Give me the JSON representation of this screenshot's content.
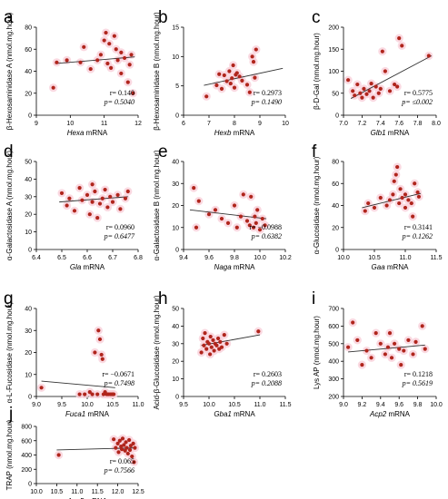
{
  "colors": {
    "point": "#b0251c",
    "halo": "#f9d2dc",
    "trend": "#333333",
    "axis": "#000000"
  },
  "chart_data": [
    {
      "letter": "a",
      "type": "scatter",
      "xlabel_gene": "Hexa",
      "xlabel_suffix": " mRNA",
      "ylabel": "β-Hexosaminidase A (nmol.mg.hour)",
      "xlim": [
        9,
        12
      ],
      "ylim": [
        0,
        80
      ],
      "xticks": [
        9,
        10,
        11,
        12
      ],
      "yticks": [
        0,
        20,
        40,
        60,
        80
      ],
      "xtick_labels": [
        "9",
        "10",
        "11",
        "12"
      ],
      "ytick_labels": [
        "0",
        "20",
        "40",
        "60",
        "80"
      ],
      "r_text": "r= 0.140",
      "p_text": "p= 0.5040",
      "p_symbol": "p",
      "trend": [
        [
          9.55,
          47
        ],
        [
          11.9,
          53
        ]
      ],
      "points": [
        [
          9.5,
          25
        ],
        [
          9.6,
          48
        ],
        [
          9.9,
          50
        ],
        [
          10.3,
          48
        ],
        [
          10.4,
          62
        ],
        [
          10.6,
          42
        ],
        [
          10.8,
          50
        ],
        [
          10.9,
          55
        ],
        [
          11.0,
          68
        ],
        [
          11.05,
          75
        ],
        [
          11.1,
          47
        ],
        [
          11.15,
          65
        ],
        [
          11.2,
          43
        ],
        [
          11.3,
          72
        ],
        [
          11.35,
          60
        ],
        [
          11.4,
          50
        ],
        [
          11.5,
          57
        ],
        [
          11.5,
          38
        ],
        [
          11.6,
          52
        ],
        [
          11.7,
          30
        ],
        [
          11.75,
          46
        ],
        [
          11.8,
          55
        ],
        [
          11.85,
          20
        ]
      ]
    },
    {
      "letter": "b",
      "type": "scatter",
      "xlabel_gene": "Hexb",
      "xlabel_suffix": " mRNA",
      "ylabel": "β-Hexosaminidase B (nmol.mg.hour)",
      "xlim": [
        6,
        10
      ],
      "ylim": [
        0,
        15
      ],
      "xticks": [
        6,
        7,
        8,
        9,
        10
      ],
      "yticks": [
        0,
        5,
        10,
        15
      ],
      "xtick_labels": [
        "6",
        "7",
        "8",
        "9",
        "10"
      ],
      "ytick_labels": [
        "0",
        "5",
        "10",
        "15"
      ],
      "r_text": "r= 0.2973",
      "p_text": "p= 0.1490",
      "p_symbol": "p",
      "trend": [
        [
          6.8,
          5.1
        ],
        [
          9.9,
          8.0
        ]
      ],
      "points": [
        [
          6.9,
          3.2
        ],
        [
          7.3,
          5.1
        ],
        [
          7.4,
          7.0
        ],
        [
          7.5,
          4.5
        ],
        [
          7.6,
          6.8
        ],
        [
          7.7,
          5.8
        ],
        [
          7.8,
          7.5
        ],
        [
          7.85,
          5.4
        ],
        [
          7.9,
          6.3
        ],
        [
          7.95,
          8.5
        ],
        [
          8.0,
          4.7
        ],
        [
          8.05,
          6.9
        ],
        [
          8.1,
          7.2
        ],
        [
          8.2,
          6.6
        ],
        [
          8.3,
          5.9
        ],
        [
          8.5,
          5.2
        ],
        [
          8.6,
          3.9
        ],
        [
          8.7,
          10.0
        ],
        [
          8.75,
          9.1
        ],
        [
          8.8,
          6.4
        ],
        [
          8.85,
          11.2
        ]
      ]
    },
    {
      "letter": "c",
      "type": "scatter",
      "xlabel_gene": "Glb1",
      "xlabel_suffix": " mRNA",
      "ylabel": "β-D-Gal (nmol.mg.hour)",
      "xlim": [
        7.0,
        8.0
      ],
      "ylim": [
        0,
        200
      ],
      "xticks": [
        7.0,
        7.2,
        7.4,
        7.6,
        7.8,
        8.0
      ],
      "yticks": [
        0,
        50,
        100,
        150,
        200
      ],
      "xtick_labels": [
        "7.0",
        "7.2",
        "7.4",
        "7.6",
        "7.8",
        "8.0"
      ],
      "ytick_labels": [
        "0",
        "50",
        "100",
        "150",
        "200"
      ],
      "r_text": "r= 0.5775",
      "p_text": "p= ≤0.002",
      "p_symbol": "p",
      "trend": [
        [
          7.08,
          38
        ],
        [
          7.95,
          135
        ]
      ],
      "points": [
        [
          7.05,
          80
        ],
        [
          7.1,
          55
        ],
        [
          7.12,
          45
        ],
        [
          7.15,
          70
        ],
        [
          7.18,
          50
        ],
        [
          7.2,
          40
        ],
        [
          7.22,
          60
        ],
        [
          7.25,
          48
        ],
        [
          7.28,
          55
        ],
        [
          7.3,
          72
        ],
        [
          7.32,
          40
        ],
        [
          7.35,
          65
        ],
        [
          7.38,
          50
        ],
        [
          7.4,
          60
        ],
        [
          7.42,
          145
        ],
        [
          7.45,
          100
        ],
        [
          7.5,
          55
        ],
        [
          7.55,
          70
        ],
        [
          7.58,
          65
        ],
        [
          7.6,
          175
        ],
        [
          7.63,
          158
        ],
        [
          7.92,
          135
        ]
      ]
    },
    {
      "letter": "d",
      "type": "scatter",
      "xlabel_gene": "Gla",
      "xlabel_suffix": " mRNA",
      "ylabel": "α-Galactosidase A (nmol.mg.hour)",
      "xlim": [
        6.4,
        6.8
      ],
      "ylim": [
        0,
        50
      ],
      "xticks": [
        6.4,
        6.5,
        6.6,
        6.7,
        6.8
      ],
      "yticks": [
        0,
        10,
        20,
        30,
        40,
        50
      ],
      "xtick_labels": [
        "6.4",
        "6.5",
        "6.6",
        "6.7",
        "6.8"
      ],
      "ytick_labels": [
        "0",
        "10",
        "20",
        "30",
        "40",
        "50"
      ],
      "r_text": "r= 0.0960",
      "p_text": "p= 0.6477",
      "p_symbol": "p",
      "trend": [
        [
          6.49,
          27
        ],
        [
          6.76,
          30
        ]
      ],
      "points": [
        [
          6.5,
          32
        ],
        [
          6.52,
          25
        ],
        [
          6.53,
          29
        ],
        [
          6.55,
          22
        ],
        [
          6.57,
          35
        ],
        [
          6.58,
          28
        ],
        [
          6.6,
          31
        ],
        [
          6.61,
          20
        ],
        [
          6.62,
          27
        ],
        [
          6.63,
          33
        ],
        [
          6.64,
          18
        ],
        [
          6.65,
          26
        ],
        [
          6.66,
          29
        ],
        [
          6.67,
          34
        ],
        [
          6.68,
          24
        ],
        [
          6.69,
          30
        ],
        [
          6.7,
          27
        ],
        [
          6.72,
          31
        ],
        [
          6.73,
          23
        ],
        [
          6.75,
          29
        ],
        [
          6.76,
          33
        ],
        [
          6.62,
          37
        ]
      ]
    },
    {
      "letter": "e",
      "type": "scatter",
      "xlabel_gene": "Naga",
      "xlabel_suffix": " mRNA",
      "ylabel": "α-Galactosidase B (nmol.mg.hour)",
      "xlim": [
        9.4,
        10.2
      ],
      "ylim": [
        0,
        40
      ],
      "xticks": [
        9.4,
        9.6,
        9.8,
        10.0,
        10.2
      ],
      "yticks": [
        0,
        10,
        20,
        30,
        40
      ],
      "xtick_labels": [
        "9.4",
        "9.6",
        "9.8",
        "10.0",
        "10.2"
      ],
      "ytick_labels": [
        "0",
        "10",
        "20",
        "30",
        "40"
      ],
      "r_text": "r= −0.0988",
      "p_text": "p= 0.6382",
      "p_symbol": "p",
      "trend": [
        [
          9.45,
          18
        ],
        [
          10.05,
          14
        ]
      ],
      "points": [
        [
          9.48,
          28
        ],
        [
          9.5,
          10
        ],
        [
          9.52,
          22
        ],
        [
          9.6,
          16
        ],
        [
          9.65,
          18
        ],
        [
          9.7,
          14
        ],
        [
          9.75,
          12
        ],
        [
          9.8,
          20
        ],
        [
          9.82,
          10
        ],
        [
          9.85,
          15
        ],
        [
          9.87,
          25
        ],
        [
          9.9,
          13
        ],
        [
          9.92,
          11
        ],
        [
          9.93,
          24
        ],
        [
          9.95,
          10
        ],
        [
          9.96,
          15
        ],
        [
          9.97,
          12
        ],
        [
          9.98,
          18
        ],
        [
          10.0,
          9
        ],
        [
          10.02,
          14
        ],
        [
          10.04,
          11
        ]
      ]
    },
    {
      "letter": "f",
      "type": "scatter",
      "xlabel_gene": "Gaa",
      "xlabel_suffix": " mRNA",
      "ylabel": "α-Glucosidase (nmol.mg.hour)",
      "xlim": [
        10.0,
        11.5
      ],
      "ylim": [
        0,
        80
      ],
      "xticks": [
        10.0,
        10.5,
        11.0,
        11.5
      ],
      "yticks": [
        0,
        20,
        40,
        60,
        80
      ],
      "xtick_labels": [
        "10.0",
        "10.5",
        "11.0",
        "11.5"
      ],
      "ytick_labels": [
        "0",
        "20",
        "40",
        "60",
        "80"
      ],
      "r_text": "r= 0.3141",
      "p_text": "p= 0.1262",
      "p_symbol": "p",
      "trend": [
        [
          10.3,
          38
        ],
        [
          11.25,
          51
        ]
      ],
      "points": [
        [
          10.35,
          35
        ],
        [
          10.4,
          42
        ],
        [
          10.5,
          38
        ],
        [
          10.6,
          47
        ],
        [
          10.7,
          40
        ],
        [
          10.75,
          45
        ],
        [
          10.8,
          50
        ],
        [
          10.82,
          62
        ],
        [
          10.85,
          68
        ],
        [
          10.87,
          75
        ],
        [
          10.9,
          42
        ],
        [
          10.92,
          55
        ],
        [
          10.95,
          47
        ],
        [
          11.0,
          50
        ],
        [
          11.0,
          38
        ],
        [
          11.05,
          45
        ],
        [
          11.1,
          42
        ],
        [
          11.12,
          30
        ],
        [
          11.15,
          60
        ],
        [
          11.2,
          52
        ],
        [
          11.22,
          48
        ]
      ]
    },
    {
      "letter": "g",
      "type": "scatter",
      "xlabel_gene": "Fuca1",
      "xlabel_suffix": " mRNA",
      "ylabel": "α-L-Fucosidase (nmol.mg.hour)",
      "xlim": [
        9.0,
        11.0
      ],
      "ylim": [
        0,
        40
      ],
      "xticks": [
        9.0,
        9.5,
        10.0,
        10.5,
        11.0
      ],
      "yticks": [
        0,
        10,
        20,
        30,
        40
      ],
      "xtick_labels": [
        "9.0",
        "9.5",
        "10.0",
        "10.5",
        "11.0"
      ],
      "ytick_labels": [
        "0",
        "10",
        "20",
        "30",
        "40"
      ],
      "r_text": "r= −0.0671",
      "p_text": "p= 0.7498",
      "p_symbol": "p",
      "trend": [
        [
          9.1,
          7
        ],
        [
          10.55,
          4
        ]
      ],
      "points": [
        [
          9.1,
          4
        ],
        [
          9.85,
          1
        ],
        [
          9.95,
          1
        ],
        [
          10.05,
          2
        ],
        [
          10.1,
          1
        ],
        [
          10.15,
          20
        ],
        [
          10.2,
          1
        ],
        [
          10.22,
          30
        ],
        [
          10.25,
          26
        ],
        [
          10.28,
          19
        ],
        [
          10.3,
          17
        ],
        [
          10.32,
          1
        ],
        [
          10.35,
          2
        ],
        [
          10.38,
          1
        ],
        [
          10.4,
          1
        ],
        [
          10.42,
          1
        ],
        [
          10.45,
          1
        ],
        [
          10.48,
          1
        ],
        [
          10.5,
          1
        ],
        [
          10.52,
          1
        ]
      ]
    },
    {
      "letter": "h",
      "type": "scatter",
      "xlabel_gene": "Gba1",
      "xlabel_suffix": " mRNA",
      "ylabel": "Acid-β-Glucosidase (nmol.mg.hour)",
      "xlim": [
        9.5,
        11.5
      ],
      "ylim": [
        0,
        50
      ],
      "xticks": [
        9.5,
        10.0,
        10.5,
        11.0,
        11.5
      ],
      "yticks": [
        0,
        10,
        20,
        30,
        40,
        50
      ],
      "xtick_labels": [
        "9.5",
        "10.0",
        "10.5",
        "11.0",
        "11.5"
      ],
      "ytick_labels": [
        "0",
        "10",
        "20",
        "30",
        "40",
        "50"
      ],
      "r_text": "r= 0.2603",
      "p_text": "p= 0.2088",
      "p_symbol": "p",
      "trend": [
        [
          9.85,
          29
        ],
        [
          11.0,
          35
        ]
      ],
      "points": [
        [
          9.85,
          25
        ],
        [
          9.88,
          33
        ],
        [
          9.9,
          29
        ],
        [
          9.92,
          36
        ],
        [
          9.95,
          27
        ],
        [
          9.97,
          31
        ],
        [
          10.0,
          30
        ],
        [
          10.02,
          24
        ],
        [
          10.03,
          34
        ],
        [
          10.05,
          28
        ],
        [
          10.08,
          32
        ],
        [
          10.1,
          26
        ],
        [
          10.12,
          30
        ],
        [
          10.15,
          29
        ],
        [
          10.18,
          33
        ],
        [
          10.2,
          27
        ],
        [
          10.22,
          31
        ],
        [
          10.25,
          28
        ],
        [
          10.3,
          35
        ],
        [
          10.35,
          30
        ],
        [
          10.97,
          37
        ]
      ]
    },
    {
      "letter": "i",
      "type": "scatter",
      "xlabel_gene": "Acp2",
      "xlabel_suffix": " mRNA",
      "ylabel": "Lys AP (nmol.mg.hour)",
      "xlim": [
        9.0,
        10.0
      ],
      "ylim": [
        200,
        700
      ],
      "xticks": [
        9.0,
        9.2,
        9.4,
        9.6,
        9.8,
        10.0
      ],
      "yticks": [
        200,
        300,
        400,
        500,
        600,
        700
      ],
      "xtick_labels": [
        "9.0",
        "9.2",
        "9.4",
        "9.6",
        "9.8",
        "10.0"
      ],
      "ytick_labels": [
        "200",
        "300",
        "400",
        "500",
        "600",
        "700"
      ],
      "r_text": "r= 0.1218",
      "p_text": "p= 0.5619",
      "p_symbol": "p",
      "trend": [
        [
          9.05,
          453
        ],
        [
          9.88,
          492
        ]
      ],
      "points": [
        [
          9.05,
          480
        ],
        [
          9.1,
          620
        ],
        [
          9.15,
          520
        ],
        [
          9.2,
          380
        ],
        [
          9.25,
          460
        ],
        [
          9.3,
          420
        ],
        [
          9.35,
          560
        ],
        [
          9.4,
          500
        ],
        [
          9.45,
          440
        ],
        [
          9.48,
          480
        ],
        [
          9.5,
          560
        ],
        [
          9.52,
          420
        ],
        [
          9.55,
          500
        ],
        [
          9.6,
          470
        ],
        [
          9.62,
          380
        ],
        [
          9.65,
          460
        ],
        [
          9.7,
          520
        ],
        [
          9.75,
          440
        ],
        [
          9.78,
          510
        ],
        [
          9.85,
          600
        ],
        [
          9.88,
          470
        ]
      ]
    },
    {
      "letter": "j",
      "type": "scatter",
      "xlabel_gene": "Acp5",
      "xlabel_suffix": " mRNA",
      "ylabel": "TRAP (nmol.mg.hour)",
      "xlim": [
        10.0,
        12.5
      ],
      "ylim": [
        0,
        800
      ],
      "xticks": [
        10.0,
        10.5,
        11.0,
        11.5,
        12.0,
        12.5
      ],
      "yticks": [
        0,
        200,
        400,
        600,
        800
      ],
      "xtick_labels": [
        "10.0",
        "10.5",
        "11.0",
        "11.5",
        "12.0",
        "12.5"
      ],
      "ytick_labels": [
        "0",
        "200",
        "400",
        "600",
        "800"
      ],
      "r_text": "r= 0.065",
      "p_text": "p= 0.7566",
      "p_symbol": "p",
      "trend": [
        [
          10.5,
          470
        ],
        [
          12.45,
          500
        ]
      ],
      "points": [
        [
          10.55,
          400
        ],
        [
          11.9,
          620
        ],
        [
          11.95,
          500
        ],
        [
          12.0,
          560
        ],
        [
          12.02,
          440
        ],
        [
          12.05,
          600
        ],
        [
          12.08,
          520
        ],
        [
          12.1,
          480
        ],
        [
          12.12,
          630
        ],
        [
          12.15,
          540
        ],
        [
          12.18,
          460
        ],
        [
          12.2,
          580
        ],
        [
          12.22,
          500
        ],
        [
          12.25,
          420
        ],
        [
          12.28,
          610
        ],
        [
          12.3,
          470
        ],
        [
          12.32,
          530
        ],
        [
          12.35,
          380
        ],
        [
          12.38,
          560
        ],
        [
          12.4,
          300
        ],
        [
          12.42,
          500
        ]
      ]
    }
  ]
}
